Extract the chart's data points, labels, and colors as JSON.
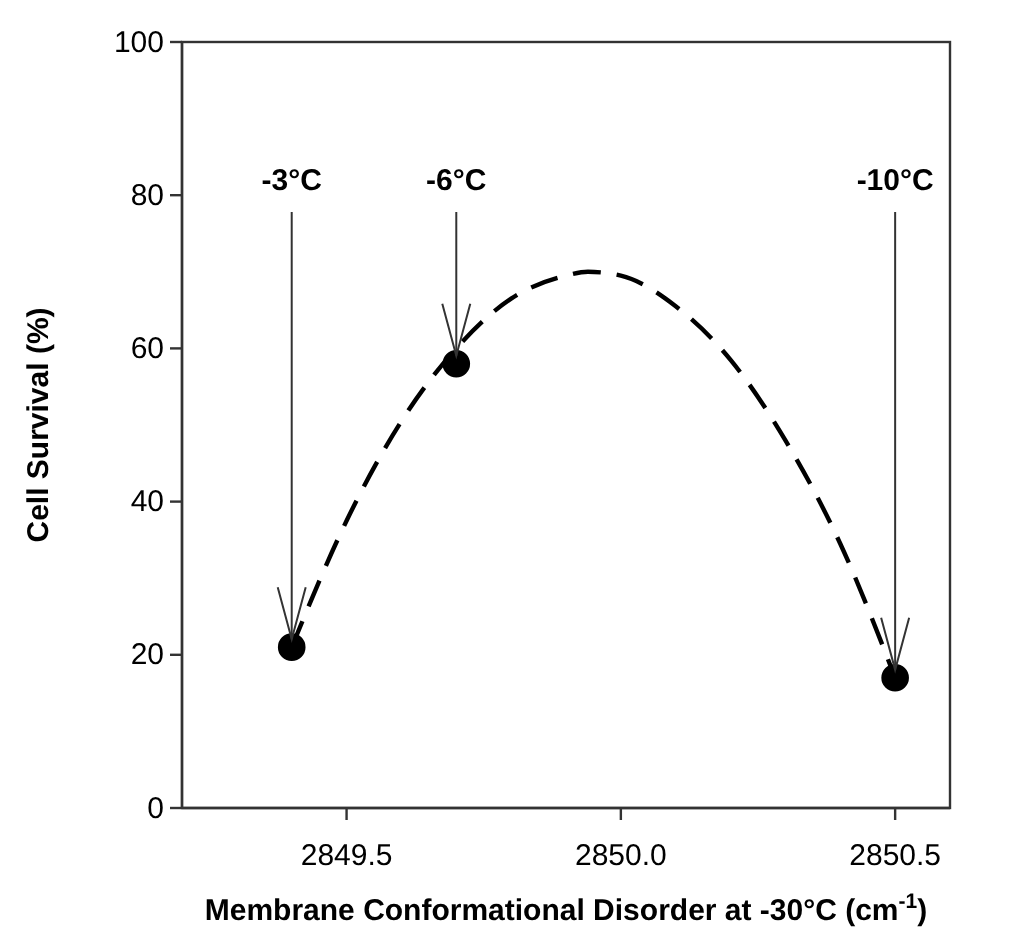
{
  "chart_data": {
    "type": "scatter",
    "xlabel": "Membrane Conformational Disorder at -30°C (cm$^{-1}$)",
    "ylabel": "Cell Survival (%)",
    "xlim": [
      2849.2,
      2850.6
    ],
    "xticks": [
      {
        "value": 2849.5,
        "label": "2849.5"
      },
      {
        "value": 2850.0,
        "label": "2850.0"
      },
      {
        "value": 2850.5,
        "label": "2850.5"
      }
    ],
    "ylim": [
      0,
      100
    ],
    "yticks": [
      0,
      20,
      40,
      60,
      80,
      100
    ],
    "grid": false,
    "series": [
      {
        "type": "scatter",
        "color": "#000000",
        "marker": "circle",
        "x": [
          2849.4,
          2849.7,
          2850.5
        ],
        "values": [
          21,
          58,
          17
        ]
      },
      {
        "type": "line",
        "color": "#000000",
        "line_style": "dashed",
        "marker": "none",
        "x": [
          2849.4,
          2849.5,
          2849.6,
          2849.7,
          2849.8,
          2849.9,
          2849.94,
          2850.0,
          2850.1,
          2850.2,
          2850.3,
          2850.4,
          2850.5
        ],
        "values": [
          21,
          37.5,
          50.5,
          60,
          66.5,
          69.5,
          70,
          69.5,
          65.5,
          58.5,
          48,
          34.5,
          17
        ]
      }
    ],
    "annotations": [
      {
        "text": "-3°C",
        "x": 2849.4,
        "y": 21
      },
      {
        "text": "-6°C",
        "x": 2849.7,
        "y": 58
      },
      {
        "text": "-10°C",
        "x": 2850.5,
        "y": 17
      }
    ]
  }
}
